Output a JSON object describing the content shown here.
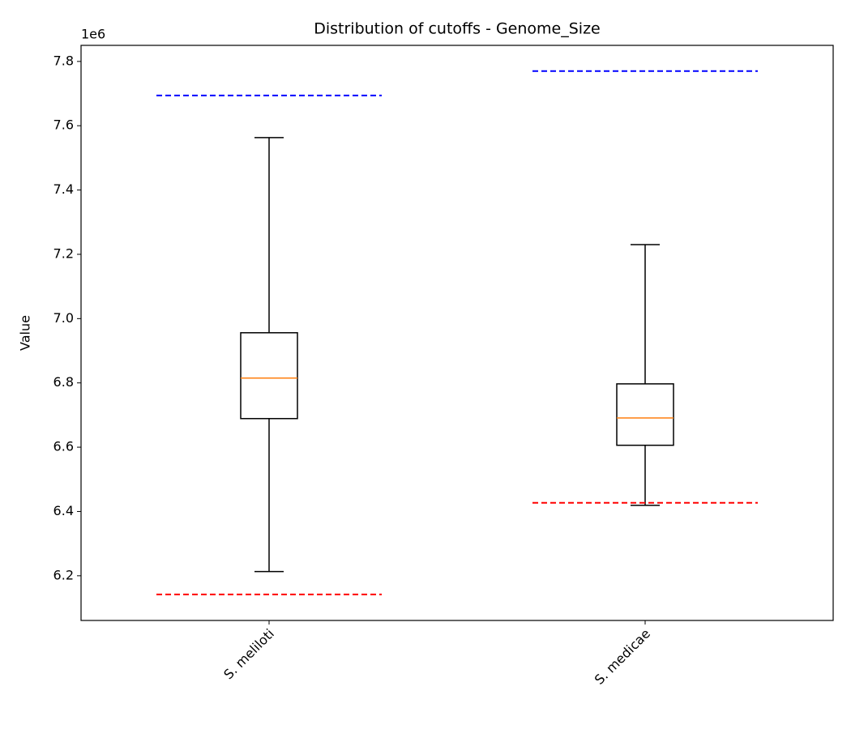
{
  "chart_data": {
    "type": "box",
    "title": "Distribution of cutoffs - Genome_Size",
    "y_label": "Value",
    "offset_label": "1e6",
    "categories": [
      "S. meliloti",
      "S. medicae"
    ],
    "boxes": [
      {
        "whislo": 6.213,
        "q1": 6.689,
        "med": 6.815,
        "q3": 6.956,
        "whishi": 7.563
      },
      {
        "whislo": 6.419,
        "q1": 6.606,
        "med": 6.691,
        "q3": 6.797,
        "whishi": 7.23
      }
    ],
    "upper_cutoff": {
      "values": [
        7.694,
        7.77
      ],
      "color": "#0000ff"
    },
    "lower_cutoff": {
      "values": [
        6.142,
        6.427
      ],
      "color": "#ff0000"
    },
    "median_color": "#ff7f0e",
    "box_color": "#000000",
    "ylim": [
      6.061,
      7.85
    ],
    "yticks": [
      6.2,
      6.4,
      6.6,
      6.8,
      {
        "value": 7.0,
        "label": "7.0"
      },
      7.2,
      7.4,
      7.6,
      7.8
    ],
    "grid": false
  }
}
